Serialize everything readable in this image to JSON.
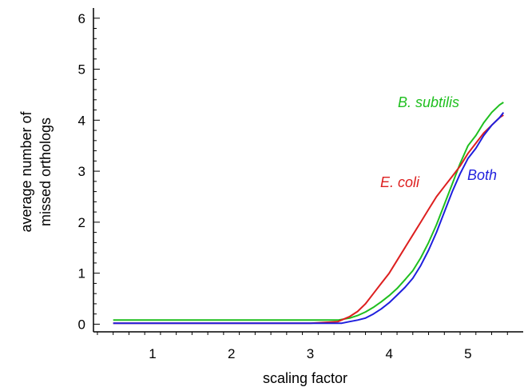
{
  "chart_data": {
    "type": "line",
    "xlabel": "scaling factor",
    "ylabel_lines": [
      "average number of",
      "missed orthologs"
    ],
    "xlim": [
      0.25,
      5.7
    ],
    "ylim": [
      -0.15,
      6.2
    ],
    "xticks": [
      1,
      2,
      3,
      4,
      5
    ],
    "yticks": [
      0,
      1,
      2,
      3,
      4,
      5,
      6
    ],
    "grid": false,
    "legend": "none",
    "series": [
      {
        "name": "B. subtilis",
        "color": "#1fbf1f",
        "x": [
          0.5,
          1.0,
          2.0,
          3.0,
          3.35,
          3.5,
          3.6,
          3.7,
          3.8,
          3.9,
          4.0,
          4.1,
          4.2,
          4.3,
          4.4,
          4.5,
          4.6,
          4.7,
          4.8,
          4.9,
          5.0,
          5.1,
          5.2,
          5.3,
          5.4,
          5.45
        ],
        "values": [
          0.08,
          0.08,
          0.08,
          0.08,
          0.08,
          0.12,
          0.17,
          0.24,
          0.33,
          0.44,
          0.56,
          0.7,
          0.87,
          1.05,
          1.3,
          1.6,
          1.95,
          2.35,
          2.75,
          3.15,
          3.5,
          3.7,
          3.95,
          4.15,
          4.3,
          4.35
        ]
      },
      {
        "name": "E. coli",
        "color": "#dd1f1f",
        "x": [
          0.5,
          1.0,
          2.0,
          3.0,
          3.35,
          3.5,
          3.6,
          3.7,
          3.8,
          3.9,
          4.0,
          4.1,
          4.2,
          4.3,
          4.4,
          4.5,
          4.6,
          4.7,
          4.8,
          4.9,
          5.0,
          5.1,
          5.2,
          5.3,
          5.4,
          5.45
        ],
        "values": [
          0.02,
          0.02,
          0.02,
          0.02,
          0.05,
          0.15,
          0.25,
          0.4,
          0.6,
          0.8,
          1.0,
          1.25,
          1.5,
          1.75,
          2.0,
          2.25,
          2.5,
          2.7,
          2.9,
          3.1,
          3.35,
          3.55,
          3.75,
          3.9,
          4.05,
          4.1
        ]
      },
      {
        "name": "Both",
        "color": "#1f1fdd",
        "x": [
          0.5,
          1.0,
          2.0,
          3.0,
          3.4,
          3.5,
          3.6,
          3.7,
          3.8,
          3.9,
          4.0,
          4.1,
          4.2,
          4.3,
          4.4,
          4.5,
          4.6,
          4.7,
          4.8,
          4.9,
          5.0,
          5.1,
          5.2,
          5.3,
          5.4,
          5.45
        ],
        "values": [
          0.02,
          0.02,
          0.02,
          0.02,
          0.02,
          0.05,
          0.08,
          0.12,
          0.2,
          0.3,
          0.42,
          0.57,
          0.72,
          0.9,
          1.15,
          1.45,
          1.8,
          2.2,
          2.6,
          2.95,
          3.25,
          3.45,
          3.7,
          3.9,
          4.05,
          4.15
        ]
      }
    ]
  }
}
